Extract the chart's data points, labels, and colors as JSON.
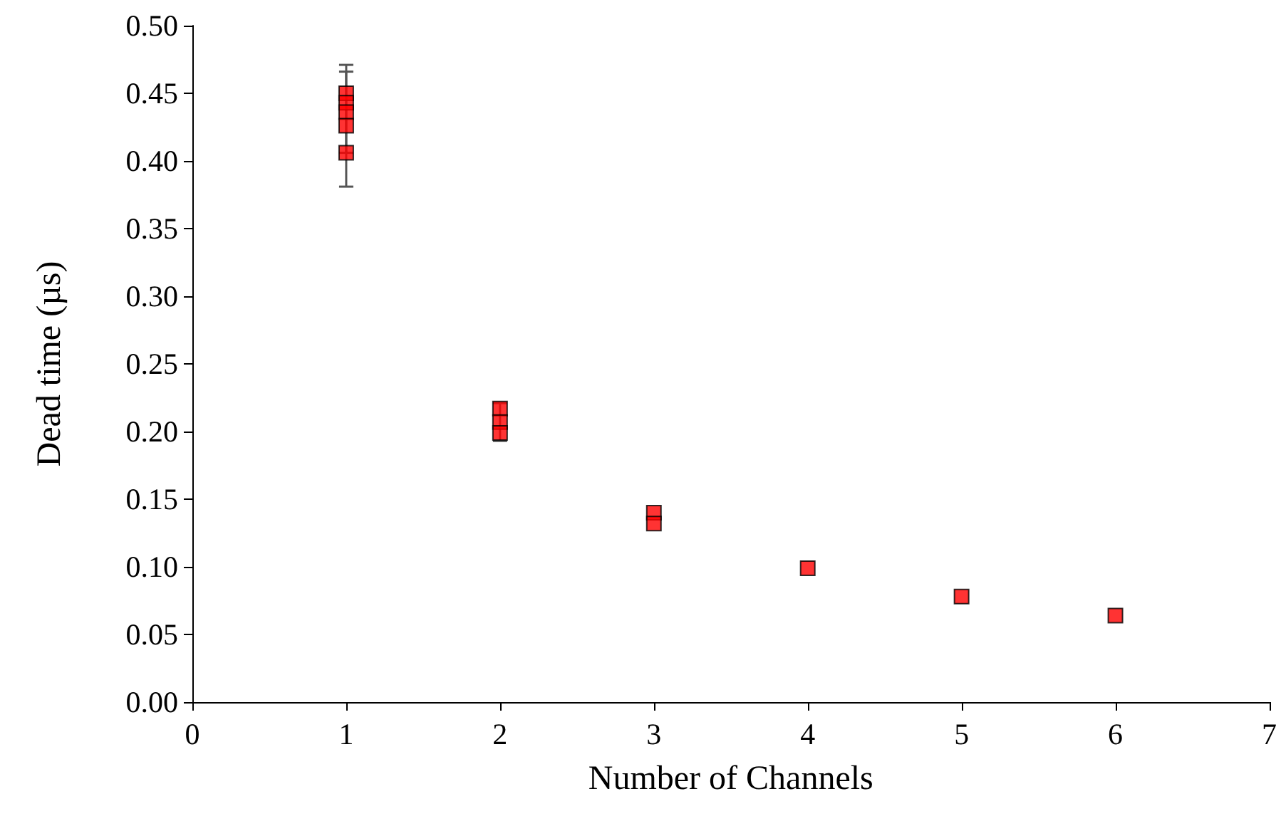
{
  "chart_data": {
    "type": "scatter",
    "xlabel": "Number of Channels",
    "ylabel": "Dead time (µs)",
    "x": [
      1,
      1,
      1,
      1,
      1,
      2,
      2,
      2,
      3,
      3,
      4,
      5,
      6
    ],
    "series": [
      {
        "color": "#ff0000",
        "values": [
          0.45,
          0.443,
          0.436,
          0.426,
          0.406,
          0.217,
          0.207,
          0.199,
          0.14,
          0.132,
          0.099,
          0.078,
          0.064
        ],
        "errors": [
          null,
          null,
          0.03,
          0.045,
          null,
          null,
          0.014,
          null,
          null,
          null,
          null,
          null,
          null
        ]
      }
    ],
    "xlim": [
      0,
      7
    ],
    "xticks": [
      0,
      1,
      2,
      3,
      4,
      5,
      6,
      7
    ],
    "ylim": [
      0,
      0.5
    ],
    "yticks": [
      {
        "value": 0,
        "label": "0.00"
      },
      {
        "value": 0.05,
        "label": "0.05"
      },
      {
        "value": 0.1,
        "label": "0.10"
      },
      {
        "value": 0.15,
        "label": "0.15"
      },
      {
        "value": 0.2,
        "label": "0.20"
      },
      {
        "value": 0.25,
        "label": "0.25"
      },
      {
        "value": 0.3,
        "label": "0.30"
      },
      {
        "value": 0.35,
        "label": "0.35"
      },
      {
        "value": 0.4,
        "label": "0.40"
      },
      {
        "value": 0.45,
        "label": "0.45"
      },
      {
        "value": 0.5,
        "label": "0.50"
      }
    ],
    "marker": "square",
    "grid": false
  }
}
